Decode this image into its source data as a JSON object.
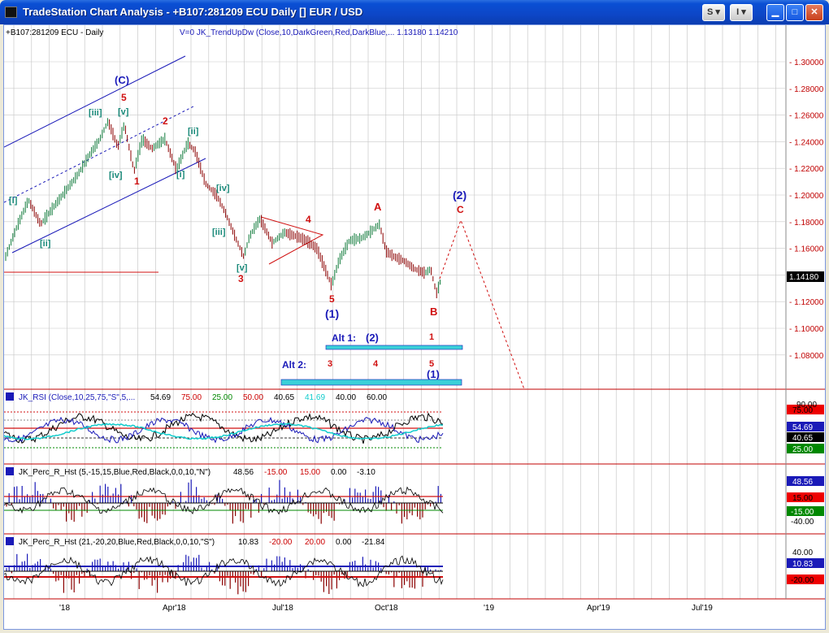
{
  "window": {
    "title": "TradeStation Chart Analysis - +B107:281209 ECU Daily [] EUR / USD",
    "buttons": {
      "s_menu": "S",
      "i_menu": "I"
    }
  },
  "price_panel": {
    "symbol_label": "+B107:281209 ECU - Daily",
    "indicator_label": "V=0  JK_TrendUpDw (Close,10,DarkGreen,Red,DarkBlue,...  1.13180  1.14210",
    "axis_ticks": [
      "1.30000",
      "1.28000",
      "1.26000",
      "1.24000",
      "1.22000",
      "1.20000",
      "1.18000",
      "1.16000",
      "1.14000",
      "1.12000",
      "1.10000",
      "1.08000"
    ],
    "last_price": "1.14180",
    "wave_labels": [
      {
        "text": "(C)",
        "color": "#1a1ab8"
      },
      {
        "text": "5",
        "color": "#d01010"
      },
      {
        "text": "[iii]",
        "color": "#1a8a7a"
      },
      {
        "text": "[v]",
        "color": "#1a8a7a"
      },
      {
        "text": "2",
        "color": "#d01010"
      },
      {
        "text": "[ii]",
        "color": "#1a8a7a"
      },
      {
        "text": "[iv]",
        "color": "#1a8a7a"
      },
      {
        "text": "1",
        "color": "#d01010"
      },
      {
        "text": "[i]",
        "color": "#1a8a7a"
      },
      {
        "text": "[i]",
        "color": "#1a8a7a"
      },
      {
        "text": "[ii]",
        "color": "#1a8a7a"
      },
      {
        "text": "[iv]",
        "color": "#1a8a7a"
      },
      {
        "text": "[iii]",
        "color": "#1a8a7a"
      },
      {
        "text": "[v]",
        "color": "#1a8a7a"
      },
      {
        "text": "3",
        "color": "#d01010"
      },
      {
        "text": "4",
        "color": "#d01010"
      },
      {
        "text": "5",
        "color": "#d01010"
      },
      {
        "text": "(1)",
        "color": "#1a1ab8"
      },
      {
        "text": "A",
        "color": "#d01010"
      },
      {
        "text": "B",
        "color": "#d01010"
      },
      {
        "text": "(2)",
        "color": "#1a1ab8"
      },
      {
        "text": "C",
        "color": "#d01010"
      }
    ],
    "alt1_label": "Alt 1:",
    "alt1_wave": "(2)",
    "alt1_num": "1",
    "alt2_label": "Alt 2:",
    "alt2_num3": "3",
    "alt2_num4": "4",
    "alt2_num5": "5",
    "alt2_wave": "(1)"
  },
  "rsi_panel": {
    "label": "JK_RSI (Close,10,25,75,\"S\",5,...",
    "values": [
      "54.69",
      "75.00",
      "25.00",
      "50.00",
      "40.65",
      "41.69",
      "40.00",
      "60.00"
    ],
    "value_colors": [
      "#000",
      "#c00",
      "#080",
      "#c00",
      "#000",
      "#1cc",
      "#000",
      "#000"
    ],
    "axis": {
      "v90": "90.00",
      "v75": "75.00",
      "v5469": "54.69",
      "v4065": "40.65",
      "v25": "25.00"
    }
  },
  "perc_r_5": {
    "label": "JK_Perc_R_Hst (5,-15,15,Blue,Red,Black,0,0,10,\"N\")",
    "values": [
      "48.56",
      "-15.00",
      "15.00",
      "0.00",
      "-3.10"
    ],
    "value_colors": [
      "#000",
      "#c00",
      "#c00",
      "#000",
      "#000"
    ],
    "axis": {
      "a": "48.56",
      "b": "15.00",
      "c": "-15.00",
      "d": "-40.00"
    }
  },
  "perc_r_21": {
    "label": "JK_Perc_R_Hst (21,-20,20,Blue,Red,Black,0,0,10,\"S\")",
    "values": [
      "10.83",
      "-20.00",
      "20.00",
      "0.00",
      "-21.84"
    ],
    "value_colors": [
      "#000",
      "#c00",
      "#c00",
      "#000",
      "#000"
    ],
    "axis": {
      "a": "40.00",
      "b": "10.83",
      "c": "-20.00"
    }
  },
  "time_axis": [
    "'18",
    "Apr'18",
    "Jul'18",
    "Oct'18",
    "'19",
    "Apr'19",
    "Jul'19"
  ],
  "colors": {
    "up_bar": "#0f7a3a",
    "down_bar": "#8b0000",
    "neutral_bar": "#333",
    "wave_blue": "#1a1ab8",
    "wave_red": "#d01010",
    "wave_teal": "#1a8a7a",
    "alt_bar": "#3ad0d8"
  }
}
